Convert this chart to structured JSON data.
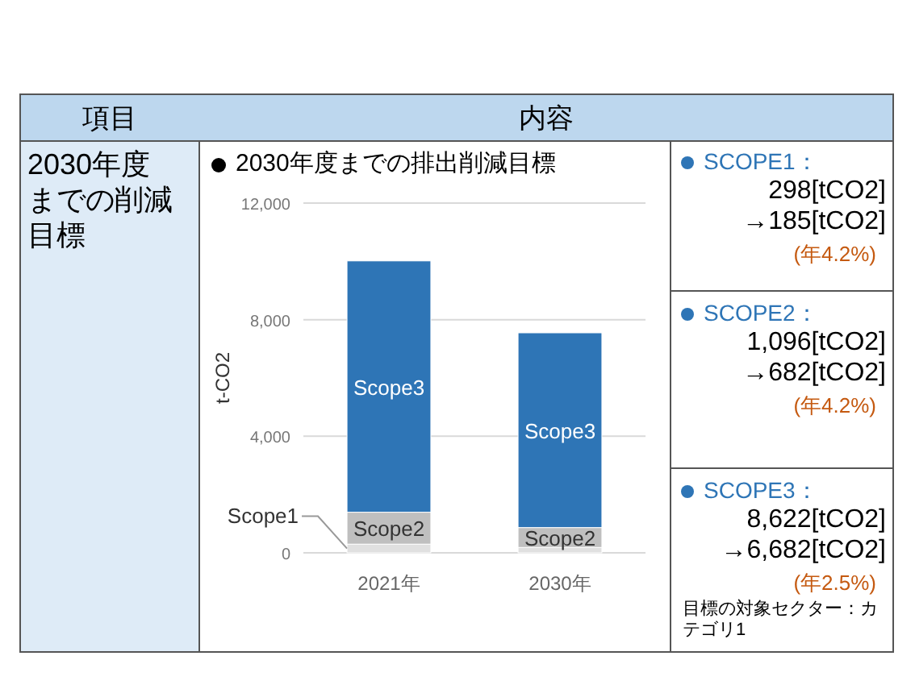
{
  "chart_data": {
    "type": "bar",
    "stacked": true,
    "title": "2030年度までの排出削減目標",
    "ylabel": "t-CO2",
    "categories": [
      "2021年",
      "2030年"
    ],
    "series": [
      {
        "name": "Scope1",
        "color": "#e0e0e0",
        "values": [
          298,
          185
        ]
      },
      {
        "name": "Scope2",
        "color": "#bfbfbf",
        "values": [
          1096,
          682
        ]
      },
      {
        "name": "Scope3",
        "color": "#2e75b6",
        "values": [
          8622,
          6682
        ]
      }
    ],
    "ylim": [
      0,
      12000
    ],
    "yticks": [
      0,
      {
        "value": 4000,
        "label": "4,000"
      },
      {
        "value": 8000,
        "label": "8,000"
      },
      {
        "value": 12000,
        "label": "12,000"
      }
    ],
    "grid": "y",
    "annotations": [
      "項目",
      "内容",
      "2030年度までの削減目標",
      "SCOPE1：",
      "298[tCO2]",
      "→185[tCO2]",
      "(年4.2%)",
      "SCOPE2：",
      "1,096[tCO2]",
      "→682[tCO2]",
      "(年4.2%)",
      "SCOPE3：",
      "8,622[tCO2]",
      "→6,682[tCO2]",
      "(年2.5%)",
      "目標の対象セクター：カテゴリ1"
    ]
  }
}
